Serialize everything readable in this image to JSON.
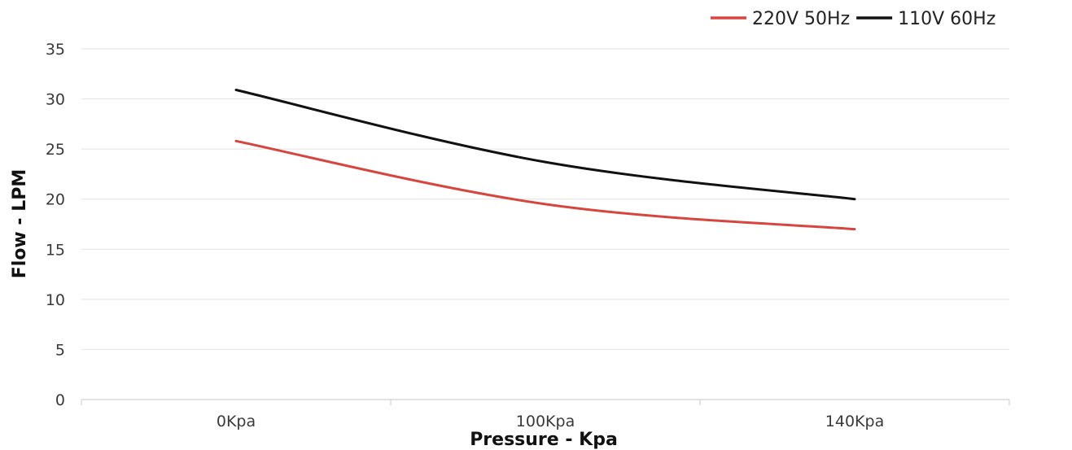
{
  "chart_data": {
    "type": "line",
    "categories": [
      "0Kpa",
      "100Kpa",
      "140Kpa"
    ],
    "series": [
      {
        "name": "220V 50Hz",
        "values": [
          25.8,
          19.5,
          17.0
        ],
        "color": "#d6453e"
      },
      {
        "name": "110V 60Hz",
        "values": [
          30.9,
          23.7,
          20.0
        ],
        "color": "#111111"
      }
    ],
    "title": "",
    "xlabel": "Pressure - Kpa",
    "ylabel": "Flow - LPM",
    "ylim": [
      0,
      35
    ],
    "yticks": [
      0,
      5,
      10,
      15,
      20,
      25,
      30,
      35
    ],
    "grid": true,
    "legend_position": "top-right",
    "smooth": true
  }
}
